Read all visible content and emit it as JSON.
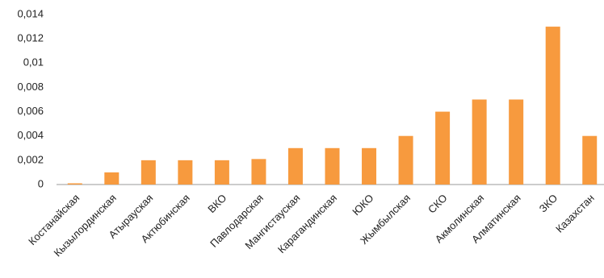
{
  "chart_data": {
    "type": "bar",
    "categories": [
      "Костанайская",
      "Кызылординская",
      "Атырауская",
      "Актюбинская",
      "ВКО",
      "Павлодарская",
      "Мангистауская",
      "Карагандинская",
      "ЮКО",
      "Жымбылская",
      "СКО",
      "Акмолинская",
      "Алматинская",
      "ЗКО",
      "Казахстан"
    ],
    "values": [
      0.0001,
      0.001,
      0.002,
      0.002,
      0.002,
      0.0021,
      0.003,
      0.003,
      0.003,
      0.004,
      0.006,
      0.007,
      0.007,
      0.013,
      0.004
    ],
    "color": "#f79a3e",
    "ylim": [
      0,
      0.014
    ],
    "yticks": [
      0,
      {
        "value": 0.002,
        "label": "0,002"
      },
      {
        "value": 0.004,
        "label": "0,004"
      },
      {
        "value": 0.006,
        "label": "0,006"
      },
      {
        "value": 0.008,
        "label": "0,008"
      },
      {
        "value": 0.01,
        "label": "0,01"
      },
      {
        "value": 0.012,
        "label": "0,012"
      },
      {
        "value": 0.014,
        "label": "0,014"
      }
    ],
    "grid": false
  }
}
